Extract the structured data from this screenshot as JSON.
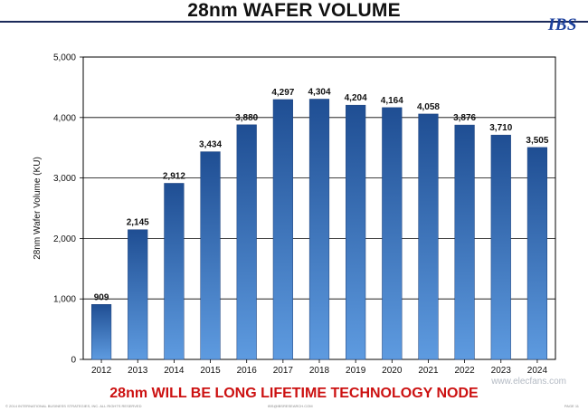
{
  "header": {
    "title": "28nm WAFER VOLUME",
    "logo": "IBS"
  },
  "footer": {
    "headline": "28nm WILL BE LONG LIFETIME TECHNOLOGY NODE",
    "fine_left": "© 2014 INTERNATIONAL BUSINESS STRATEGIES, INC. ALL RIGHTS RESERVED",
    "fine_center": "IBS@IBSRESEARCH.COM",
    "fine_right": "PAGE 11",
    "watermark": "www.elecfans.com"
  },
  "colors": {
    "bar_top": "#1f4e93",
    "bar_bottom": "#5e9be0",
    "grid": "#000000",
    "title": "#111111",
    "headline": "#cc1111"
  },
  "chart_data": {
    "type": "bar",
    "categories": [
      "2012",
      "2013",
      "2014",
      "2015",
      "2016",
      "2017",
      "2018",
      "2019",
      "2020",
      "2021",
      "2022",
      "2023",
      "2024"
    ],
    "series": [
      {
        "values": [
          909,
          2145,
          2912,
          3434,
          3880,
          4297,
          4304,
          4204,
          4164,
          4058,
          3876,
          3710,
          3505
        ]
      }
    ],
    "data_labels": [
      "909",
      "2,145",
      "2,912",
      "3,434",
      "3,880",
      "4,297",
      "4,304",
      "4,204",
      "4,164",
      "4,058",
      "3,876",
      "3,710",
      "3,505"
    ],
    "title": "28nm WAFER VOLUME",
    "xlabel": "",
    "ylabel": "28nm Wafer Volume (KU)",
    "ylim": [
      0,
      5000
    ],
    "yticks": [
      0,
      1000,
      2000,
      3000,
      4000,
      5000
    ],
    "ytick_labels": [
      "0",
      "1,000",
      "2,000",
      "3,000",
      "4,000",
      "5,000"
    ],
    "grid": "horizontal",
    "legend": "none"
  }
}
